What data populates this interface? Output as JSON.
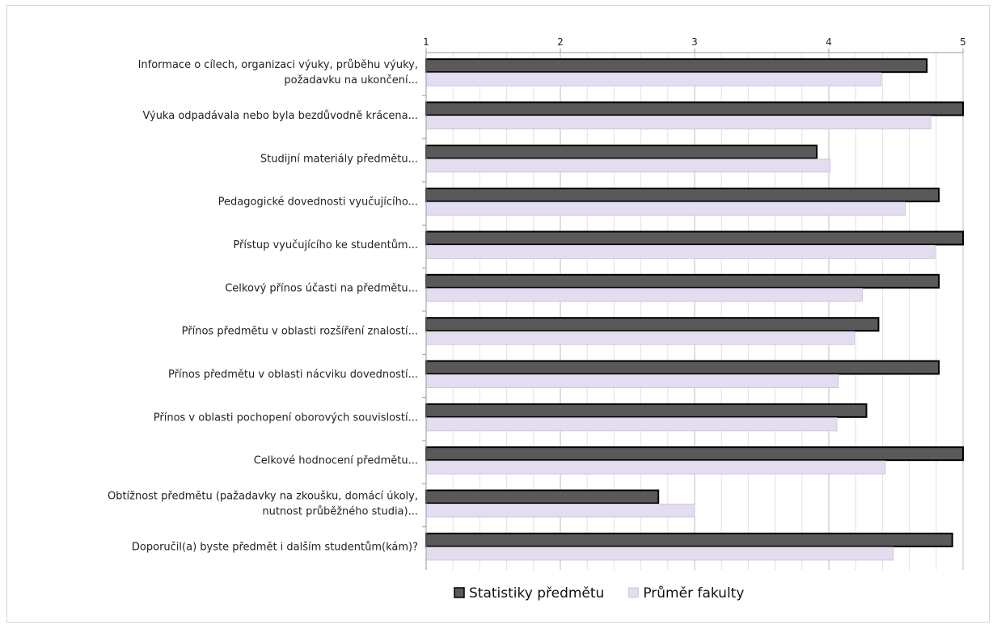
{
  "chart_data": {
    "type": "bar",
    "orientation": "horizontal",
    "xlim": [
      1,
      5
    ],
    "ticks": [
      1,
      2,
      3,
      4,
      5
    ],
    "grid": true,
    "legend_position": "bottom",
    "categories": [
      [
        "Informace o cílech, organizaci výuky, průběhu výuky,",
        "požadavku na ukončení..."
      ],
      [
        "Výuka odpadávala nebo byla bezdůvodně krácena..."
      ],
      [
        "Studijní materiály předmětu..."
      ],
      [
        "Pedagogické dovednosti vyučujícího..."
      ],
      [
        "Přístup vyučujícího ke studentům..."
      ],
      [
        "Celkový přínos účasti na předmětu..."
      ],
      [
        "Přínos předmětu  v oblasti rozšíření znalostí..."
      ],
      [
        "Přínos předmětu  v oblasti nácviku dovedností..."
      ],
      [
        "Přínos v oblasti pochopení oborových souvislostí..."
      ],
      [
        "Celkové hodnocení předmětu..."
      ],
      [
        "Obtížnost předmětu  (pažadavky na zkoušku, domácí úkoly,",
        "nutnost průběžného studia)..."
      ],
      [
        "Doporučil(a) byste předmět i dalším studentům(kám)?"
      ]
    ],
    "series": [
      {
        "name": "Statistiky předmětu",
        "color": "#595959",
        "stroke": "#000000",
        "values": [
          4.73,
          5.0,
          3.91,
          4.82,
          5.0,
          4.82,
          4.37,
          4.82,
          4.28,
          5.0,
          2.73,
          4.92
        ]
      },
      {
        "name": "Průměr fakulty",
        "color": "#e4dcef",
        "stroke": "#cfc5df",
        "values": [
          4.39,
          4.76,
          4.01,
          4.57,
          4.79,
          4.25,
          4.19,
          4.07,
          4.06,
          4.42,
          3.0,
          4.48
        ]
      }
    ]
  }
}
